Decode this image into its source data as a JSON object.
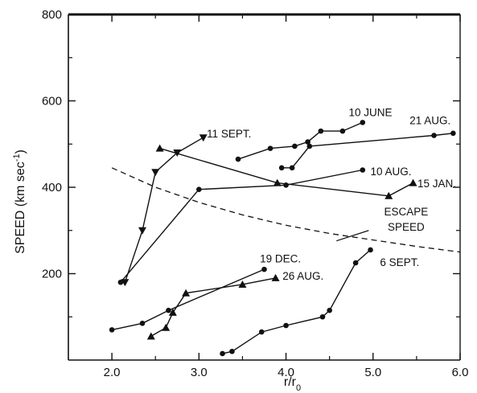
{
  "chart_data": {
    "type": "line",
    "xlabel": "r/r",
    "xlabel_sub": "0",
    "ylabel": "SPEED (km sec",
    "ylabel_sup": "-1",
    "ylabel_end": ")",
    "xlim": [
      1.5,
      6.0
    ],
    "ylim": [
      0,
      800
    ],
    "x_ticks": [
      {
        "value": 2.0,
        "label": "2.0"
      },
      {
        "value": 3.0,
        "label": "3.0"
      },
      {
        "value": 4.0,
        "label": "4.0"
      },
      {
        "value": 5.0,
        "label": "5.0"
      },
      {
        "value": 6.0,
        "label": "6.0"
      }
    ],
    "x_minor_ticks": [
      2.5,
      3.5,
      4.5,
      5.5
    ],
    "y_ticks": [
      {
        "value": 200,
        "label": "200"
      },
      {
        "value": 400,
        "label": "400"
      },
      {
        "value": 600,
        "label": "600"
      },
      {
        "value": 800,
        "label": "800"
      }
    ],
    "y_minor_ticks": [
      100,
      300,
      500,
      700
    ],
    "grid": false,
    "series": [
      {
        "name": "11 SEPT.",
        "marker": "triangle-down",
        "x": [
          2.15,
          2.35,
          2.5,
          2.75,
          3.05
        ],
        "y": [
          180,
          300,
          435,
          480,
          515
        ]
      },
      {
        "name": "10 JUNE",
        "marker": "circle",
        "x": [
          3.45,
          3.82,
          4.1,
          4.25,
          4.4,
          4.65,
          4.88
        ],
        "y": [
          465,
          490,
          495,
          505,
          530,
          530,
          550
        ]
      },
      {
        "name": "21 AUG.",
        "marker": "circle",
        "x": [
          3.95,
          4.07,
          4.27,
          5.7,
          5.92
        ],
        "y": [
          445,
          445,
          495,
          520,
          525
        ]
      },
      {
        "name": "10 AUG.",
        "marker": "circle",
        "x": [
          2.1,
          3.0,
          4.0,
          4.88
        ],
        "y": [
          180,
          395,
          405,
          440
        ]
      },
      {
        "name": "15 JAN.",
        "marker": "triangle",
        "x": [
          2.55,
          3.9,
          5.18,
          5.46
        ],
        "y": [
          490,
          410,
          380,
          410
        ]
      },
      {
        "name": "19 DEC.",
        "marker": "circle",
        "x": [
          2.0,
          2.35,
          2.65,
          3.75
        ],
        "y": [
          70,
          85,
          115,
          210
        ]
      },
      {
        "name": "26 AUG.",
        "marker": "triangle",
        "x": [
          2.45,
          2.62,
          2.7,
          2.85,
          3.5,
          3.88
        ],
        "y": [
          55,
          75,
          110,
          155,
          175,
          190
        ]
      },
      {
        "name": "6 SEPT.",
        "marker": "circle",
        "x": [
          3.27,
          3.38,
          3.72,
          4.0,
          4.42,
          4.5,
          4.8,
          4.97
        ],
        "y": [
          15,
          20,
          65,
          80,
          100,
          115,
          225,
          255
        ]
      }
    ],
    "escape_speed_curve": {
      "label_line1": "ESCAPE",
      "label_line2": "SPEED",
      "style": "dashed",
      "x": [
        2.0,
        2.5,
        3.0,
        3.5,
        4.0,
        4.5,
        5.0,
        5.5,
        6.0
      ],
      "y": [
        445,
        400,
        365,
        336,
        312,
        293,
        278,
        263,
        250
      ]
    },
    "annotations": [
      {
        "text": "11 SEPT.",
        "x": 3.09,
        "y": 515,
        "anchor": "start"
      },
      {
        "text": "10 JUNE",
        "x": 4.72,
        "y": 565,
        "anchor": "start"
      },
      {
        "text": "21 AUG.",
        "x": 5.42,
        "y": 546,
        "anchor": "start"
      },
      {
        "text": "10 AUG.",
        "x": 4.97,
        "y": 428,
        "anchor": "start"
      },
      {
        "text": "15 JAN.",
        "x": 5.51,
        "y": 400,
        "anchor": "start"
      },
      {
        "text": "19 DEC.",
        "x": 3.7,
        "y": 226,
        "anchor": "start"
      },
      {
        "text": "26 AUG.",
        "x": 3.96,
        "y": 186,
        "anchor": "start"
      },
      {
        "text": "6 SEPT.",
        "x": 5.08,
        "y": 218,
        "anchor": "start"
      }
    ]
  }
}
